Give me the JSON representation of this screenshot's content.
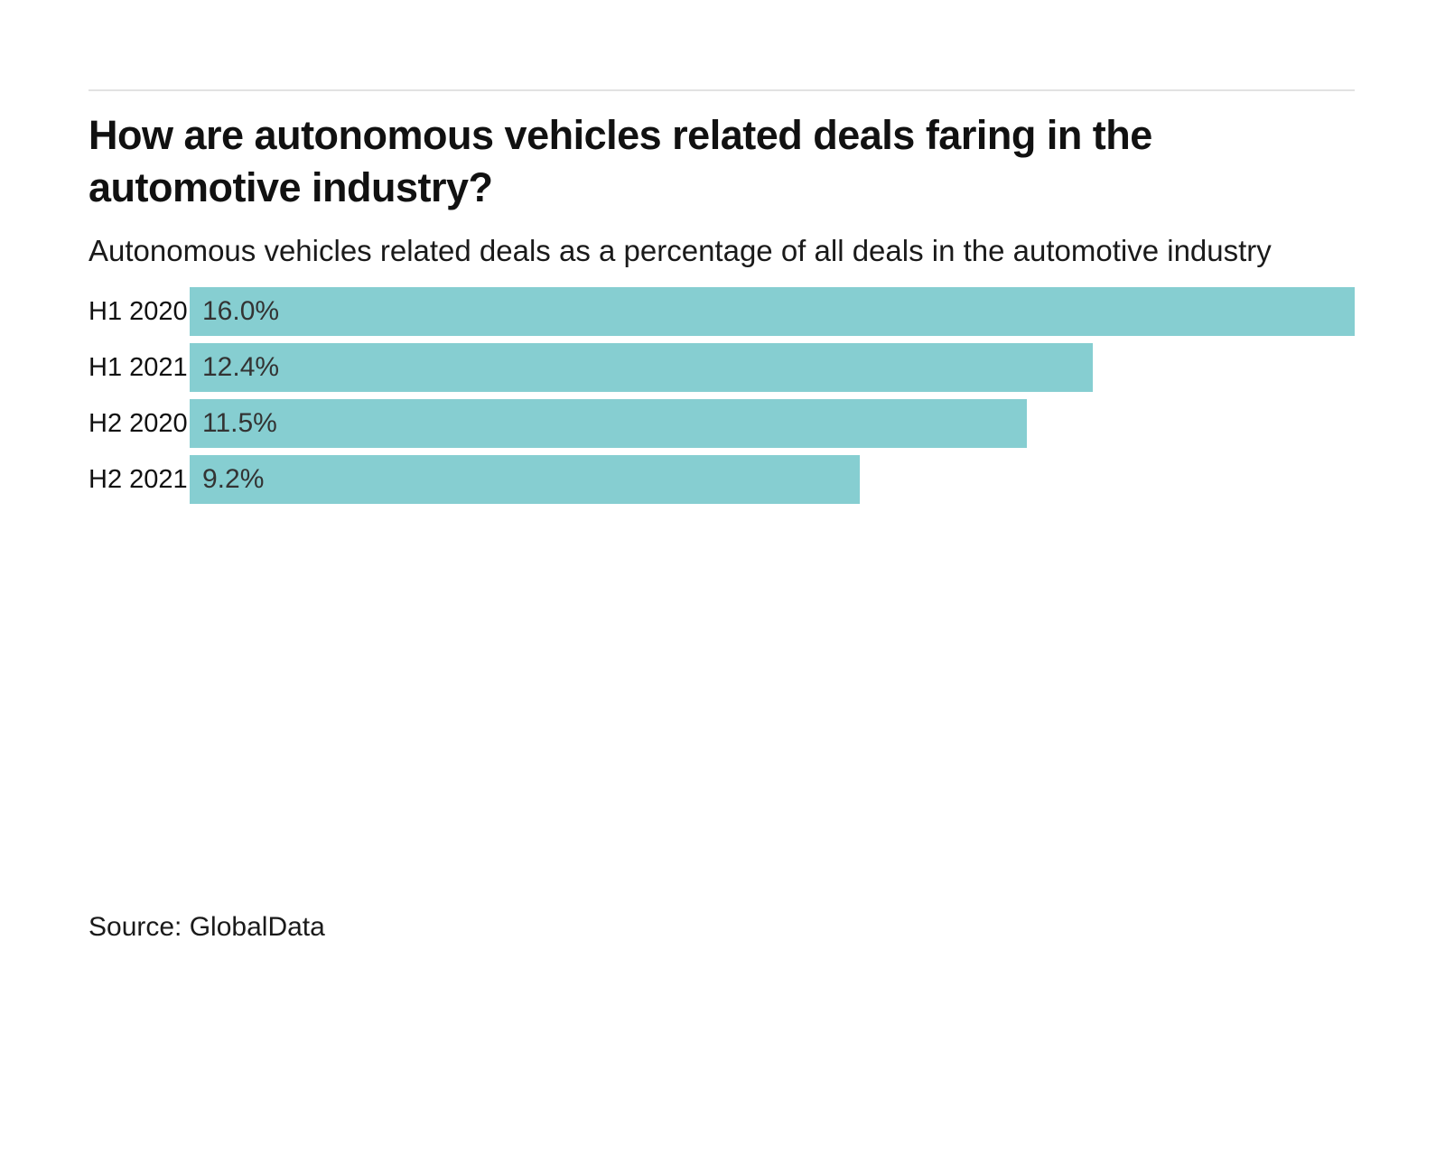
{
  "header": {
    "title": "How are autonomous vehicles related deals faring in the automotive industry?",
    "subtitle": "Autonomous vehicles related deals as a percentage of all deals in the automotive industry"
  },
  "source": {
    "label": "Source: GlobalData"
  },
  "colors": {
    "bar": "#86ced1",
    "divider": "#e2e2e2",
    "title_text": "#111111",
    "value_text": "#333333"
  },
  "chart_data": {
    "type": "bar",
    "orientation": "horizontal",
    "title": "How are autonomous vehicles related deals faring in the automotive industry?",
    "subtitle": "Autonomous vehicles related deals as a percentage of all deals in the automotive industry",
    "categories": [
      "H1 2020",
      "H1 2021",
      "H2 2020",
      "H2 2021"
    ],
    "values": [
      16.0,
      12.4,
      11.5,
      9.2
    ],
    "value_labels": [
      "16.0%",
      "12.4%",
      "11.5%",
      "9.2%"
    ],
    "xlabel": "",
    "ylabel": "",
    "xlim": [
      0,
      16.0
    ],
    "grid": false,
    "legend": false,
    "value_label_position": "inside-start",
    "source": "Source: GlobalData"
  }
}
